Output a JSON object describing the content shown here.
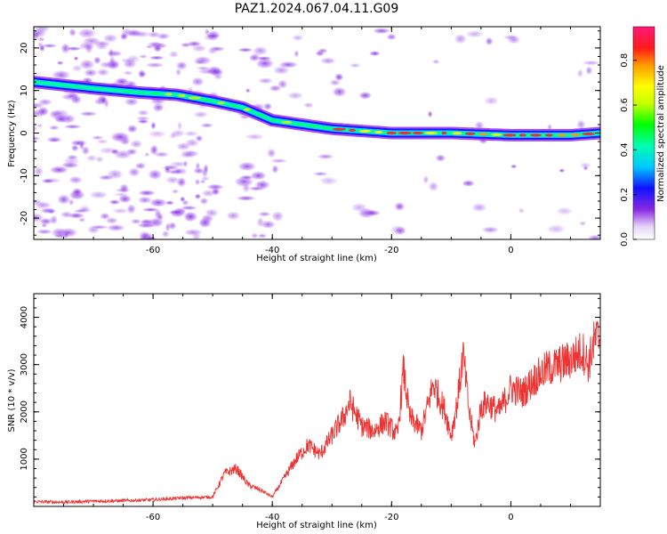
{
  "title": "PAZ1.2024.067.04.11.G09",
  "chart_data": [
    {
      "type": "heatmap",
      "xlabel": "Height of straight line (km)",
      "ylabel": "Frequency (Hz)",
      "xlim": [
        -80,
        15
      ],
      "ylim": [
        -25,
        25
      ],
      "xticks": [
        -60,
        -40,
        -20,
        0
      ],
      "yticks": [
        -20,
        -10,
        0,
        10,
        20
      ],
      "grid": false,
      "colorbar": {
        "label": "Normalized spectral amplitude",
        "range": [
          0,
          0.95
        ],
        "ticks": [
          0.0,
          0.2,
          0.4,
          0.6,
          0.8
        ],
        "colormap": "rainbow (white, violet, blue, cyan, green, yellow, orange, red, magenta)"
      },
      "ridge": {
        "x": [
          -80,
          -70,
          -62,
          -56,
          -50,
          -45,
          -40,
          -35,
          -30,
          -25,
          -20,
          -10,
          0,
          10,
          15
        ],
        "y": [
          12,
          10.5,
          9.5,
          9,
          7.5,
          6,
          3,
          2,
          1,
          0.5,
          0,
          0,
          -0.5,
          -0.5,
          0
        ]
      }
    },
    {
      "type": "line",
      "xlabel": "Height of straight line (km)",
      "ylabel": "SNR (10 * v/v)",
      "xlim": [
        -80,
        15
      ],
      "ylim": [
        0,
        4500
      ],
      "xticks": [
        -60,
        -40,
        -20,
        0
      ],
      "yticks": [
        1000,
        2000,
        3000,
        4000
      ],
      "grid": false,
      "color": "#ee3333",
      "series": [
        {
          "x": [
            -80,
            -75,
            -70,
            -65,
            -60,
            -55,
            -50,
            -48,
            -46,
            -44,
            -42,
            -40,
            -38,
            -36,
            -34,
            -32,
            -30,
            -28,
            -27,
            -25,
            -23,
            -21,
            -19,
            -18,
            -17,
            -15,
            -13,
            -11,
            -10,
            -9,
            -8,
            -7,
            -6,
            -5,
            -4,
            -2,
            0,
            2,
            4,
            6,
            8,
            10,
            12,
            13,
            14,
            15
          ],
          "values": [
            100,
            90,
            110,
            120,
            140,
            180,
            200,
            700,
            800,
            450,
            350,
            200,
            600,
            1000,
            1300,
            1100,
            1500,
            1900,
            2200,
            1700,
            1600,
            1800,
            1500,
            2900,
            1900,
            1600,
            2600,
            2000,
            1500,
            2200,
            3200,
            2000,
            1300,
            2100,
            2200,
            2000,
            2500,
            2400,
            2700,
            2900,
            3000,
            3100,
            3300,
            3000,
            3500,
            3600
          ]
        }
      ]
    }
  ]
}
